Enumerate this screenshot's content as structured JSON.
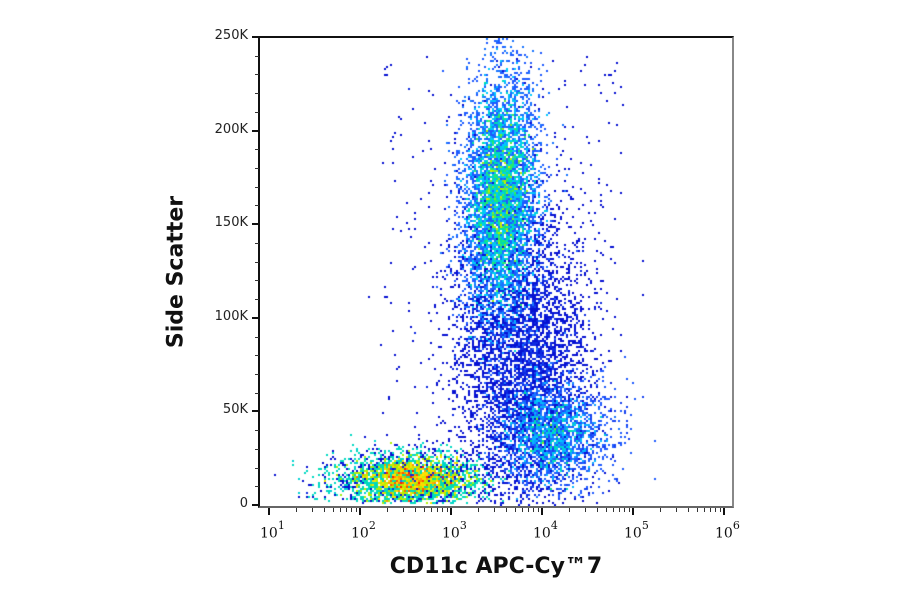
{
  "figure": {
    "x_axis_title": "CD11c APC-Cy™7",
    "y_axis_title": "Side Scatter"
  },
  "chart_data": {
    "type": "scatter",
    "subtype": "flow-cytometry-pseudocolor-density",
    "title": "",
    "xlabel": "CD11c APC-Cy™7",
    "ylabel": "Side Scatter",
    "x_scale": "log",
    "xlim": [
      10,
      1000000
    ],
    "ylim": [
      0,
      250000
    ],
    "x_ticks": [
      {
        "label_base": "10",
        "label_exp": "1",
        "value": 10
      },
      {
        "label_base": "10",
        "label_exp": "2",
        "value": 100
      },
      {
        "label_base": "10",
        "label_exp": "3",
        "value": 1000
      },
      {
        "label_base": "10",
        "label_exp": "4",
        "value": 10000
      },
      {
        "label_base": "10",
        "label_exp": "5",
        "value": 100000
      },
      {
        "label_base": "10",
        "label_exp": "6",
        "value": 1000000
      }
    ],
    "y_ticks": [
      {
        "label": "0",
        "value": 0
      },
      {
        "label": "50K",
        "value": 50000
      },
      {
        "label": "100K",
        "value": 100000
      },
      {
        "label": "150K",
        "value": 150000
      },
      {
        "label": "200K",
        "value": 200000
      },
      {
        "label": "250K",
        "value": 250000
      }
    ],
    "grid": false,
    "legend": null,
    "color_scale": [
      "#0000c8",
      "#1e5aff",
      "#00c8ff",
      "#00e68c",
      "#b4f000",
      "#ffe600",
      "#ff8c00",
      "#ff1e00"
    ],
    "populations": [
      {
        "name": "CD11c- low SSC (lymphocytes)",
        "x_center": 400,
        "y_center": 14000,
        "x_log_sd": 0.35,
        "y_sd": 6500,
        "relative_events": 0.42,
        "peak_color": "red"
      },
      {
        "name": "SSC-high granulocytes (CD11c dim)",
        "x_center": 3500,
        "y_center": 165000,
        "x_log_sd": 0.2,
        "y_sd": 32000,
        "relative_events": 0.38,
        "peak_color": "green"
      },
      {
        "name": "CD11c+ intermediate SSC",
        "x_center": 11000,
        "y_center": 38000,
        "x_log_sd": 0.25,
        "y_sd": 14000,
        "relative_events": 0.12,
        "peak_color": "cyan-green"
      },
      {
        "name": "bridge / scattered events",
        "x_center": 6000,
        "y_center": 80000,
        "x_log_sd": 0.35,
        "y_sd": 40000,
        "relative_events": 0.08,
        "peak_color": "blue"
      }
    ]
  }
}
